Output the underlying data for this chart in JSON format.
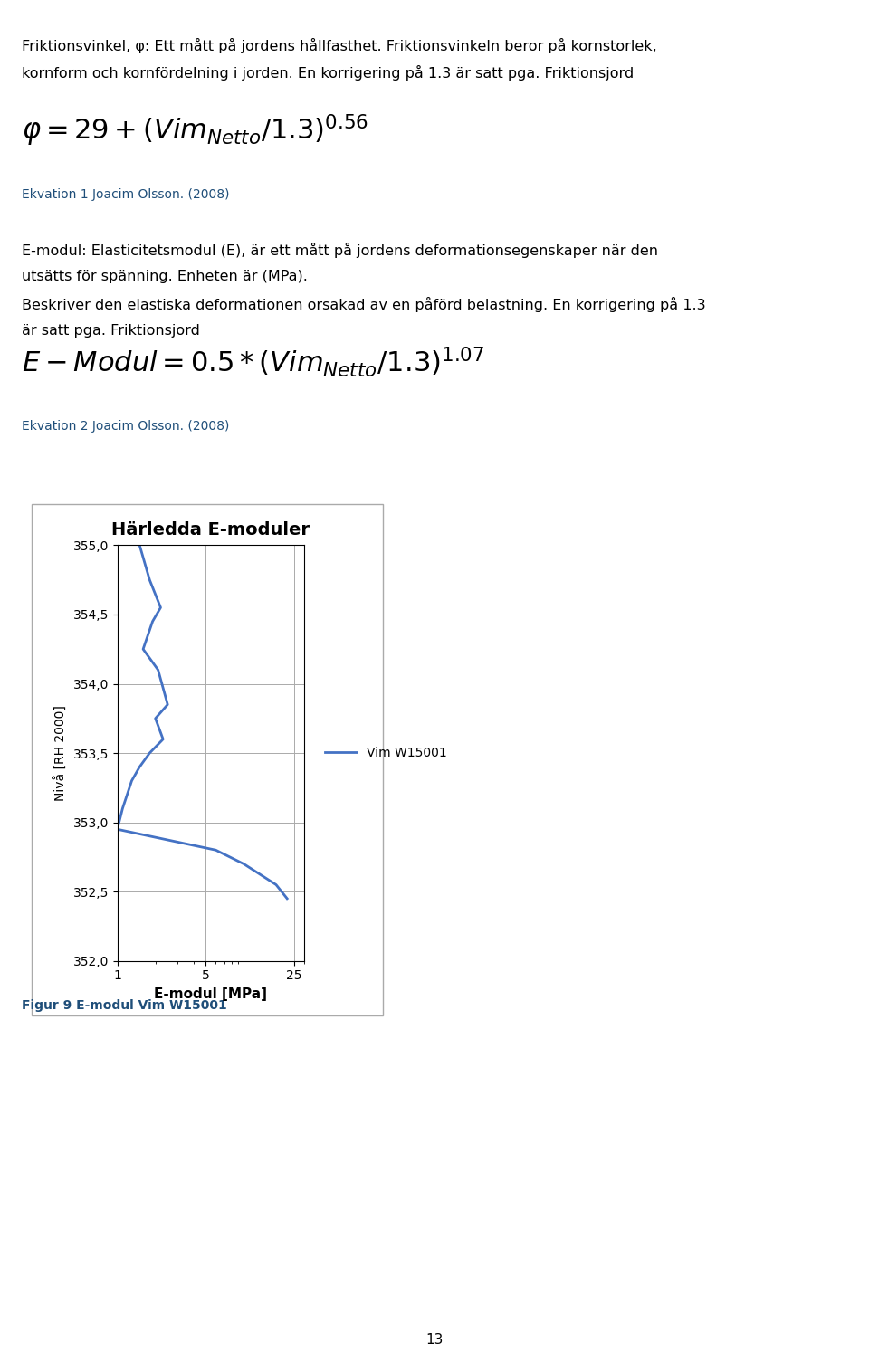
{
  "line1": "Friktionsvinkel, φ: Ett mått på jordens hållfasthet. Friktionsvinkeln beror på kornstorlek,",
  "line2": "kornform och kornfördelning i jorden. En korrigering på 1.3 är satt pga. Friktionsjord",
  "formula1": "$\\varphi = 29 + (Vim_{Netto}/1.3)^{0.56}$",
  "ekvation1": "Ekvation 1 Joacim Olsson. (2008)",
  "emodul_line1": "E-modul: Elasticitetsmodul (E), är ett mått på jordens deformationsegenskaper när den",
  "emodul_line2": "utsätts för spänning. Enheten är (MPa).",
  "emodul_line3": "Beskriver den elastiska deformationen orsakad av en påförd belastning. En korrigering på 1.3",
  "emodul_line4": "är satt pga. Friktionsjord",
  "formula2": "$E - Modul = 0.5 * (Vim_{Netto}/1.3)^{1.07}$",
  "ekvation2": "Ekvation 2 Joacim Olsson. (2008)",
  "chart_title": "Härledda E-moduler",
  "chart_xlabel": "E-modul [MPa]",
  "chart_ylabel": "Nivå [RH 2000]",
  "legend_label": "Vim W15001",
  "line_color": "#4472C4",
  "x_ticks": [
    1,
    5,
    25
  ],
  "ylim": [
    352.0,
    355.0
  ],
  "yticks": [
    352.0,
    352.5,
    353.0,
    353.5,
    354.0,
    354.5,
    355.0
  ],
  "vim_x": [
    1.5,
    1.8,
    2.2,
    1.9,
    1.6,
    2.1,
    2.5,
    2.0,
    2.3,
    1.8,
    1.5,
    1.3,
    1.1,
    1.0,
    6.0,
    10.0,
    18.0,
    22.0
  ],
  "vim_y": [
    355.0,
    354.75,
    354.55,
    354.45,
    354.25,
    354.1,
    353.85,
    353.75,
    353.6,
    353.5,
    353.4,
    353.3,
    353.1,
    352.95,
    352.8,
    352.7,
    352.55,
    352.45
  ],
  "caption": "Figur 9 E-modul Vim W15001",
  "page_number": "13",
  "background_color": "#ffffff",
  "text_color": "#000000",
  "blue_color": "#1F4E79",
  "body_fontsize": 11.5,
  "small_fontsize": 10,
  "formula_fontsize": 22,
  "title_fontsize": 14
}
